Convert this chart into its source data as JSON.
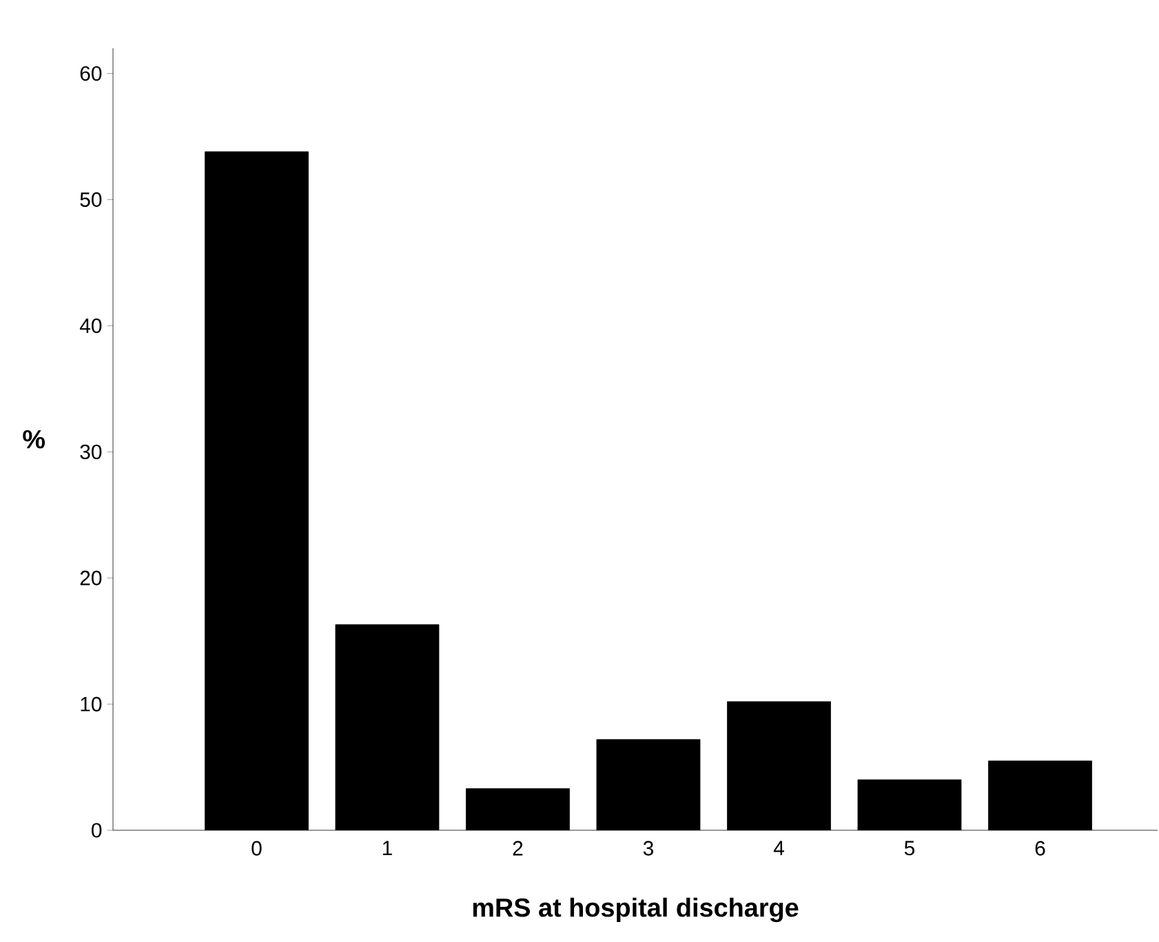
{
  "chart_data": {
    "type": "bar",
    "xlabel": "mRS at hospital discharge",
    "ylabel": "%",
    "categories": [
      "0",
      "1",
      "2",
      "3",
      "4",
      "5",
      "6"
    ],
    "values": [
      53.8,
      16.3,
      3.3,
      7.2,
      10.2,
      4.0,
      5.5
    ],
    "color": "#000000",
    "ylim": [
      0,
      62
    ],
    "yticks": [
      0,
      10,
      20,
      30,
      40,
      50,
      60
    ],
    "grid": false
  }
}
